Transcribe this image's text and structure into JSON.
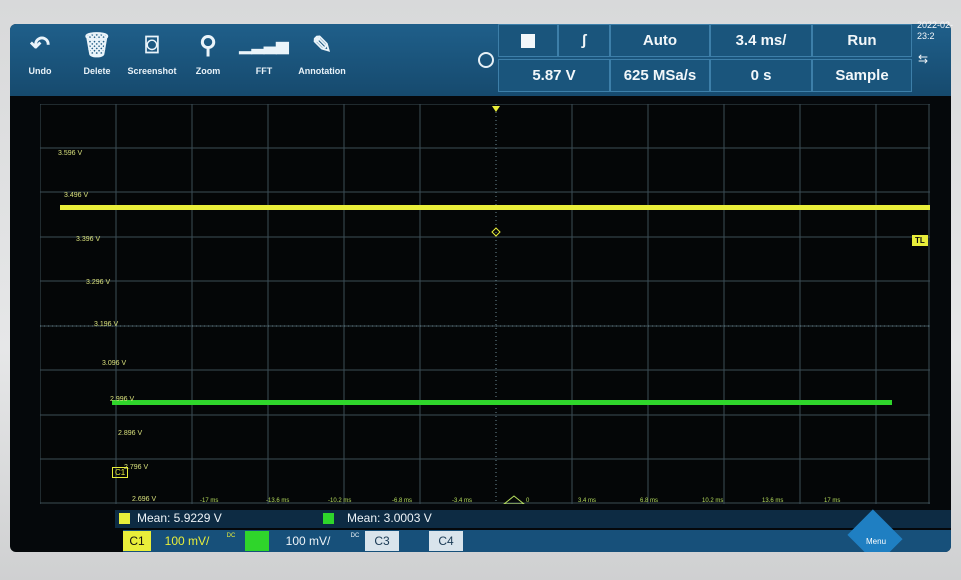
{
  "toolbar": {
    "undo_label": "Undo",
    "delete_label": "Delete",
    "screenshot_label": "Screenshot",
    "zoom_label": "Zoom",
    "fft_label": "FFT",
    "annotation_label": "Annotation"
  },
  "settings": {
    "trigger_level": "5.87 V",
    "trigger_mode": "Auto",
    "sample_rate": "625 MSa/s",
    "timebase": "3.4 ms/",
    "delay": "0 s",
    "run_state": "Run",
    "acq_mode": "Sample",
    "datetime": "2022-02-\n23:2"
  },
  "grid": {
    "voltage_labels": [
      "3.596 V",
      "3.496 V",
      "3.396 V",
      "3.296 V",
      "3.196 V",
      "3.096 V",
      "2.996 V",
      "2.896 V",
      "2.796 V",
      "2.696 V"
    ],
    "time_labels": [
      "-17 ms",
      "-13.6 ms",
      "-10.2 ms",
      "-6.8 ms",
      "-3.4 ms",
      "0",
      "3.4 ms",
      "6.8 ms",
      "10.2 ms",
      "13.6 ms",
      "17 ms"
    ],
    "trigger_marker_label": "TL",
    "c1_marker": "C1"
  },
  "measurements": {
    "ch1_mean": "Mean: 5.9229 V",
    "ch2_mean": "Mean: 3.0003 V"
  },
  "channels": {
    "c1_label": "C1",
    "c1_scale": "100 mV/",
    "c2_scale": "100 mV/",
    "c3_label": "C3",
    "c4_label": "C4",
    "coupling": "DC"
  },
  "menu_label": "Menu",
  "colors": {
    "ch1": "#e9ee3a",
    "ch2": "#2fd52b",
    "accent": "#1a557c"
  }
}
